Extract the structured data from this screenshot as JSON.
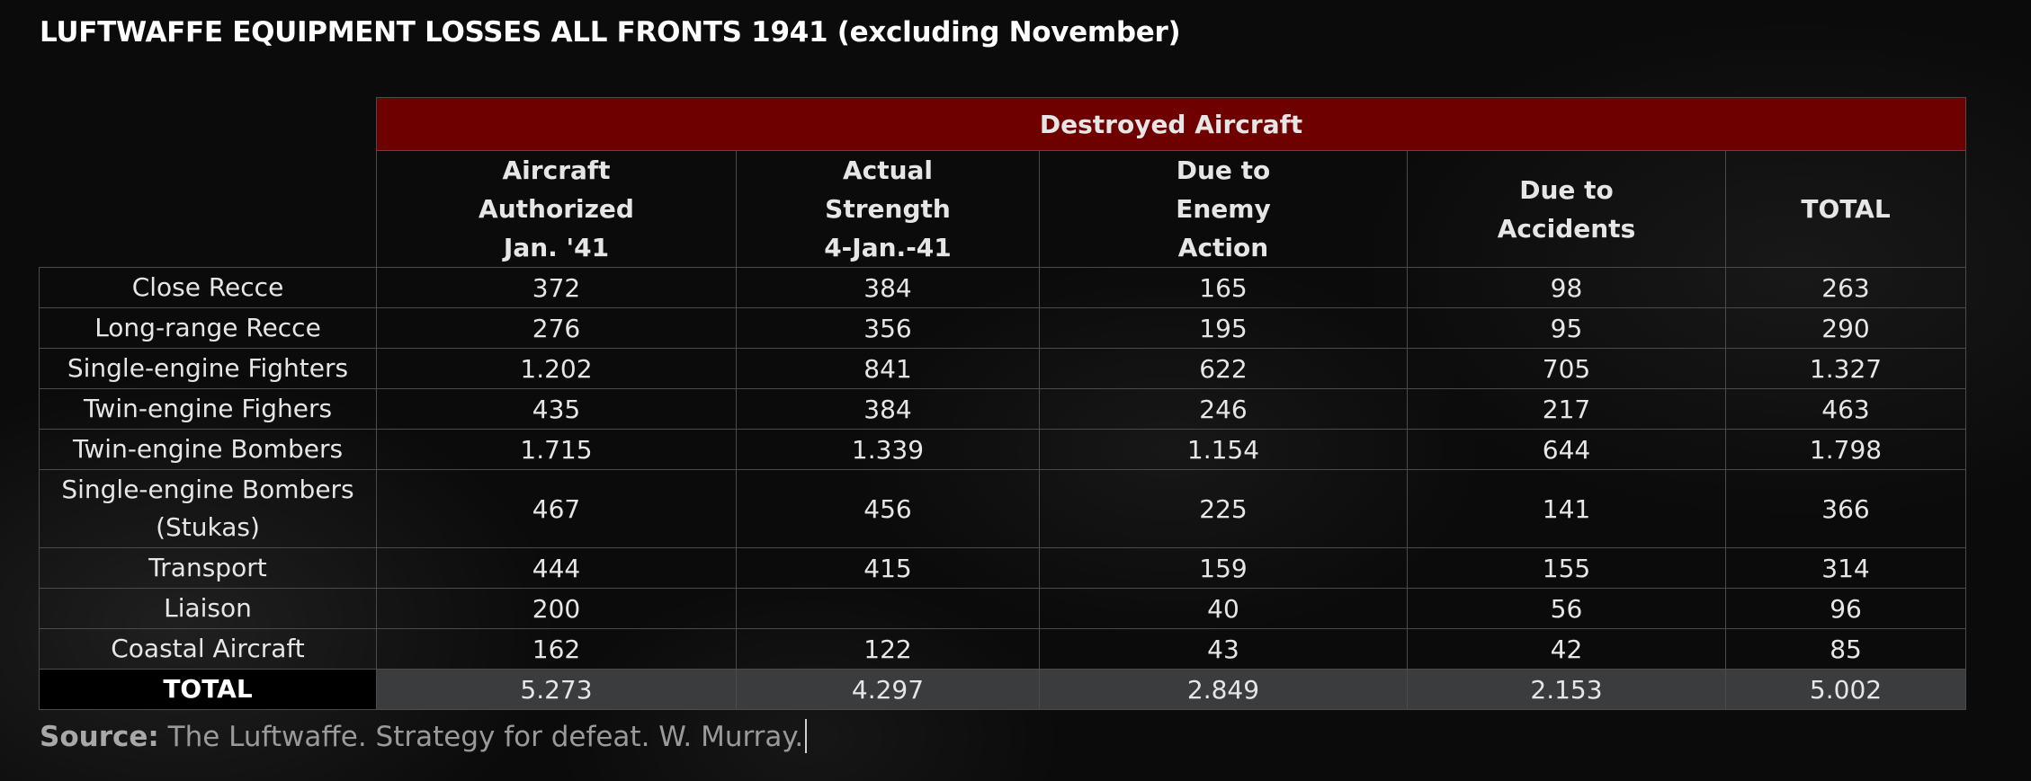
{
  "title": "LUFTWAFFE EQUIPMENT LOSSES ALL FRONTS 1941 (excluding November)",
  "table": {
    "group_header": "Destroyed Aircraft",
    "columns": [
      [
        "Aircraft",
        "Authorized",
        "Jan. '41"
      ],
      [
        "Actual",
        "Strength",
        "4-Jan.-41"
      ],
      [
        "Due to",
        "Enemy",
        "Action"
      ],
      [
        "Due to",
        "Accidents"
      ],
      [
        "TOTAL"
      ]
    ],
    "rows": [
      {
        "label": [
          "Close Recce"
        ],
        "values": [
          "372",
          "384",
          "165",
          "98",
          "263"
        ]
      },
      {
        "label": [
          "Long-range Recce"
        ],
        "values": [
          "276",
          "356",
          "195",
          "95",
          "290"
        ]
      },
      {
        "label": [
          "Single-engine Fighters"
        ],
        "values": [
          "1.202",
          "841",
          "622",
          "705",
          "1.327"
        ]
      },
      {
        "label": [
          "Twin-engine Fighers"
        ],
        "values": [
          "435",
          "384",
          "246",
          "217",
          "463"
        ]
      },
      {
        "label": [
          "Twin-engine Bombers"
        ],
        "values": [
          "1.715",
          "1.339",
          "1.154",
          "644",
          "1.798"
        ]
      },
      {
        "label": [
          "Single-engine Bombers",
          "(Stukas)"
        ],
        "values": [
          "467",
          "456",
          "225",
          "141",
          "366"
        ]
      },
      {
        "label": [
          "Transport"
        ],
        "values": [
          "444",
          "415",
          "159",
          "155",
          "314"
        ]
      },
      {
        "label": [
          "Liaison"
        ],
        "values": [
          "200",
          "",
          "40",
          "56",
          "96"
        ]
      },
      {
        "label": [
          "Coastal Aircraft"
        ],
        "values": [
          "162",
          "122",
          "43",
          "42",
          "85"
        ]
      }
    ],
    "total_row": {
      "label": "TOTAL",
      "values": [
        "5.273",
        "4.297",
        "2.849",
        "2.153",
        "5.002"
      ]
    }
  },
  "source": {
    "label": "Source:",
    "text": "The Luftwaffe. Strategy for defeat. W. Murray."
  },
  "colors": {
    "header_red": "#6e0000",
    "total_row_bg": "#3a3c3e",
    "background": "#0b0b0b"
  }
}
